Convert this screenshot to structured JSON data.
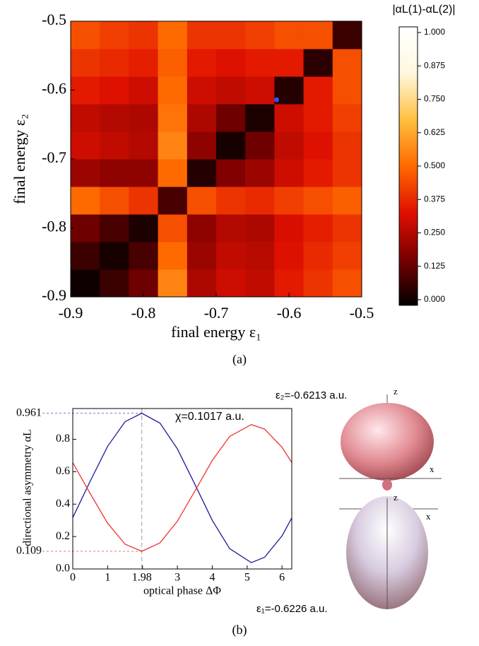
{
  "chart_data": [
    {
      "type": "heatmap",
      "xlabel": "final energy ε₁",
      "ylabel": "final energy ε₂",
      "xlim": [
        -0.9,
        -0.5
      ],
      "ylim": [
        -0.9,
        -0.5
      ],
      "xticks": [
        -0.9,
        -0.8,
        -0.7,
        -0.6,
        -0.5
      ],
      "yticks": [
        -0.9,
        -0.8,
        -0.7,
        -0.6,
        -0.5
      ],
      "x": [
        -0.88,
        -0.84,
        -0.8,
        -0.76,
        -0.72,
        -0.68,
        -0.64,
        -0.6,
        -0.56,
        -0.52
      ],
      "y": [
        -0.88,
        -0.84,
        -0.8,
        -0.76,
        -0.72,
        -0.68,
        -0.64,
        -0.6,
        -0.56,
        -0.52
      ],
      "z": [
        [
          0.02,
          0.08,
          0.15,
          0.55,
          0.25,
          0.3,
          0.28,
          0.35,
          0.4,
          0.45
        ],
        [
          0.08,
          0.03,
          0.1,
          0.5,
          0.22,
          0.28,
          0.27,
          0.33,
          0.38,
          0.42
        ],
        [
          0.15,
          0.1,
          0.04,
          0.45,
          0.2,
          0.26,
          0.25,
          0.32,
          0.36,
          0.4
        ],
        [
          0.5,
          0.45,
          0.4,
          0.1,
          0.45,
          0.4,
          0.38,
          0.42,
          0.45,
          0.48
        ],
        [
          0.22,
          0.2,
          0.2,
          0.5,
          0.05,
          0.18,
          0.22,
          0.3,
          0.35,
          0.4
        ],
        [
          0.3,
          0.28,
          0.26,
          0.55,
          0.2,
          0.03,
          0.15,
          0.28,
          0.33,
          0.4
        ],
        [
          0.28,
          0.26,
          0.25,
          0.52,
          0.25,
          0.15,
          0.04,
          0.3,
          0.35,
          0.42
        ],
        [
          0.35,
          0.33,
          0.3,
          0.5,
          0.3,
          0.28,
          0.3,
          0.05,
          0.35,
          0.45
        ],
        [
          0.4,
          0.38,
          0.36,
          0.48,
          0.35,
          0.33,
          0.35,
          0.35,
          0.06,
          0.45
        ],
        [
          0.45,
          0.42,
          0.4,
          0.5,
          0.4,
          0.4,
          0.42,
          0.45,
          0.45,
          0.08
        ]
      ],
      "colormap": [
        "#000000",
        "#7a0000",
        "#e01000",
        "#ff6a00",
        "#ffc040",
        "#fff8e0",
        "#ffffff"
      ],
      "colorbar_title": "|αL(1)-αL(2)|",
      "clim": [
        0,
        1
      ],
      "cticks": [
        {
          "value": 0,
          "label": "0.000"
        },
        {
          "value": 0.125,
          "label": "0.125"
        },
        {
          "value": 0.25,
          "label": "0.250"
        },
        {
          "value": 0.375,
          "label": "0.375"
        },
        {
          "value": 0.5,
          "label": "0.500"
        },
        {
          "value": 0.625,
          "label": "0.625"
        },
        {
          "value": 0.75,
          "label": "0.750"
        },
        {
          "value": 0.875,
          "label": "0.875"
        },
        {
          "value": 1,
          "label": "1.000"
        }
      ],
      "points": [
        {
          "x": -0.617,
          "y": -0.614,
          "color": "#3050ff"
        }
      ]
    },
    {
      "type": "line",
      "xlabel": "optical phase ΔΦ",
      "ylabel": "directional asymmetry αL",
      "annotation": "χ=0.1017 a.u.",
      "xlim": [
        0,
        6.28
      ],
      "ylim": [
        0,
        0.99
      ],
      "xticks": [
        0,
        1,
        2,
        3,
        4,
        5,
        6
      ],
      "yticks": [
        {
          "value": 0,
          "label": "0.0"
        },
        0.2,
        0.4,
        0.6,
        0.8
      ],
      "x": [
        0,
        0.5,
        1,
        1.5,
        1.98,
        2.5,
        3,
        3.5,
        4,
        4.5,
        5.12,
        5.5,
        6,
        6.28
      ],
      "series": [
        {
          "color": "#1a1a9a",
          "values": [
            0.317,
            0.542,
            0.757,
            0.909,
            0.961,
            0.9,
            0.741,
            0.523,
            0.3,
            0.125,
            0.039,
            0.072,
            0.204,
            0.315
          ]
        },
        {
          "color": "#ee3333",
          "values": [
            0.656,
            0.465,
            0.282,
            0.153,
            0.109,
            0.161,
            0.295,
            0.48,
            0.67,
            0.818,
            0.891,
            0.863,
            0.751,
            0.657
          ]
        }
      ],
      "y_markers": [
        {
          "value": 0.961,
          "color": "#1a1a9a"
        },
        {
          "value": 0.109,
          "color": "#d02020"
        }
      ],
      "x_marker": {
        "value": 1.98,
        "color": "#999999"
      }
    }
  ],
  "figure": {
    "captions": [
      "(a)",
      "(b)"
    ],
    "shape_labels": [
      {
        "text": "ε₂=-0.6213 a.u.",
        "color": "#e02020"
      },
      {
        "text": "ε₁=-0.6226 a.u.",
        "color": "#1a1a9a"
      }
    ],
    "axis_letters": [
      "z",
      "x",
      "z",
      "x"
    ]
  }
}
